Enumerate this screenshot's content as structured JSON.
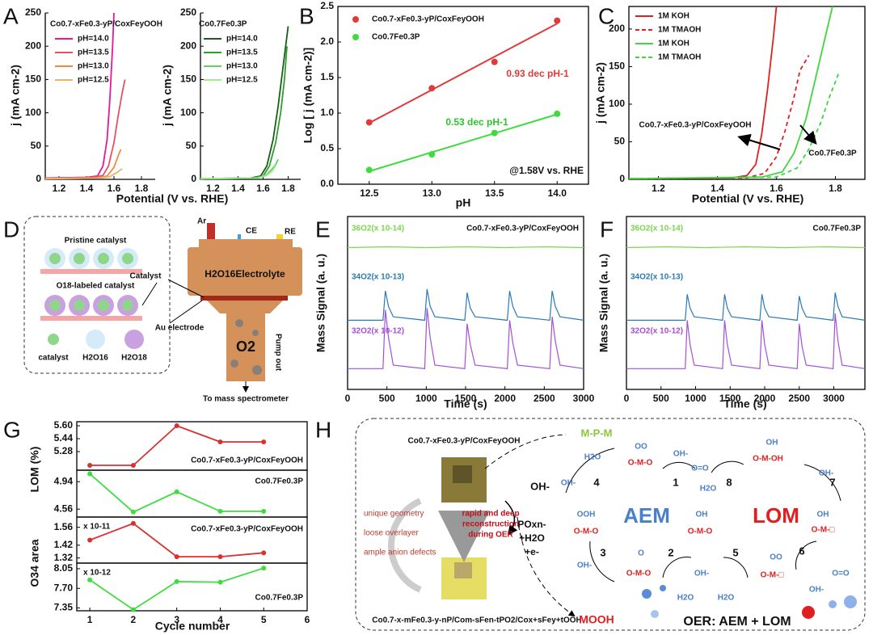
{
  "panel_labels": [
    "A",
    "B",
    "C",
    "D",
    "E",
    "F",
    "G",
    "H"
  ],
  "chart_data": [
    {
      "type": "line",
      "legend_title": "Co0.7-xFe0.3-yP/CoxFeyOOH",
      "xlabel": "Potential (V vs. RHE)",
      "ylabel": "j (mA cm-2)",
      "xlim": [
        1.1,
        1.9
      ],
      "xticks": [
        1.2,
        1.4,
        1.6,
        1.8
      ],
      "ylim": [
        0,
        250
      ],
      "yticks": [
        0,
        50,
        100,
        150,
        200,
        250
      ],
      "legend": "top-left",
      "series": [
        {
          "name": "pH=14.0",
          "color": "#e4199a",
          "x": [
            1.1,
            1.4,
            1.48,
            1.52,
            1.55,
            1.57,
            1.59,
            1.6
          ],
          "values": [
            2,
            3,
            5,
            20,
            60,
            120,
            200,
            250
          ]
        },
        {
          "name": "pH=13.5",
          "color": "#ea5064",
          "x": [
            1.1,
            1.45,
            1.52,
            1.56,
            1.6,
            1.63,
            1.66,
            1.68
          ],
          "values": [
            2,
            3,
            6,
            20,
            55,
            95,
            130,
            150
          ]
        },
        {
          "name": "pH=13.0",
          "color": "#f08a3c",
          "x": [
            1.1,
            1.48,
            1.55,
            1.6,
            1.63,
            1.65
          ],
          "values": [
            1,
            2,
            5,
            18,
            35,
            45
          ]
        },
        {
          "name": "pH=12.5",
          "color": "#e9b46a",
          "x": [
            1.1,
            1.5,
            1.57,
            1.62,
            1.66
          ],
          "values": [
            1,
            2,
            4,
            10,
            16
          ]
        }
      ]
    },
    {
      "type": "line",
      "legend_title": "Co0.7Fe0.3P",
      "ylabel": "j (mA cm-2)",
      "xlim": [
        1.1,
        1.9
      ],
      "xticks": [
        1.2,
        1.4,
        1.6,
        1.8
      ],
      "ylim": [
        0,
        250
      ],
      "yticks": [
        0,
        50,
        100,
        150,
        200,
        250
      ],
      "legend": "top-left",
      "series": [
        {
          "name": "pH=14.0",
          "color": "#1a5e1a",
          "x": [
            1.1,
            1.5,
            1.58,
            1.63,
            1.68,
            1.72,
            1.76,
            1.8
          ],
          "values": [
            1,
            2,
            5,
            20,
            60,
            110,
            170,
            230
          ]
        },
        {
          "name": "pH=13.5",
          "color": "#2e9e2e",
          "x": [
            1.1,
            1.52,
            1.6,
            1.65,
            1.7,
            1.74,
            1.77,
            1.79
          ],
          "values": [
            1,
            2,
            5,
            20,
            55,
            100,
            150,
            200
          ]
        },
        {
          "name": "pH=13.0",
          "color": "#5fd35f",
          "x": [
            1.1,
            1.55,
            1.62,
            1.66,
            1.7,
            1.72
          ],
          "values": [
            1,
            2,
            6,
            13,
            22,
            30
          ]
        },
        {
          "name": "pH=12.5",
          "color": "#a0ec90",
          "x": [
            1.1,
            1.56,
            1.63,
            1.67,
            1.7
          ],
          "values": [
            1,
            2,
            6,
            12,
            20
          ]
        }
      ]
    },
    {
      "type": "scatter",
      "fit": true,
      "xlabel": "pH",
      "ylabel": "Log [ j (mA cm-2)]",
      "xlim": [
        12.25,
        14.25
      ],
      "xticks": [
        12.5,
        {
          "value": 13,
          "label": "13.0"
        },
        13.5,
        {
          "value": 14,
          "label": "14.0"
        }
      ],
      "ylim": [
        0,
        2.5
      ],
      "yticks": [
        {
          "value": 0,
          "label": "0.0"
        },
        0.5,
        {
          "value": 1,
          "label": "1.0"
        },
        1.5,
        {
          "value": 2,
          "label": "2.0"
        },
        2.5
      ],
      "legend": "top-left",
      "annotations": [
        "0.93 dec pH-1",
        "0.53 dec pH-1",
        "@1.58V vs. RHE"
      ],
      "x": [
        12.5,
        13,
        13.5,
        14
      ],
      "series": [
        {
          "name": "Co0.7-xFe0.3-yP/CoxFeyOOH",
          "color": "#e03a3a",
          "values": [
            0.87,
            1.35,
            1.72,
            2.3
          ]
        },
        {
          "name": "Co0.7Fe0.3P",
          "color": "#3fdc3f",
          "values": [
            0.2,
            0.42,
            0.72,
            0.99
          ]
        }
      ]
    },
    {
      "type": "line",
      "xlabel": "Potential (V vs. RHE)",
      "ylabel": "j (mA cm-2)",
      "xlim": [
        1.1,
        1.9
      ],
      "xticks": [
        1.2,
        1.4,
        1.6,
        1.8
      ],
      "ylim": [
        0,
        230
      ],
      "yticks": [
        0,
        50,
        100,
        150,
        200
      ],
      "legend": "top-left",
      "annotations": [
        "Co0.7-xFe0.3-yP/CoxFeyOOH",
        "Co0.7Fe0.3P"
      ],
      "series": [
        {
          "name": "1M KOH",
          "color": "#e02020",
          "dash": false,
          "x": [
            1.1,
            1.45,
            1.5,
            1.53,
            1.55,
            1.57,
            1.59,
            1.6
          ],
          "values": [
            1,
            2,
            5,
            20,
            60,
            120,
            190,
            230
          ]
        },
        {
          "name": "1M TMAOH",
          "color": "#e02020",
          "dash": true,
          "x": [
            1.1,
            1.5,
            1.56,
            1.6,
            1.63,
            1.66,
            1.68,
            1.71
          ],
          "values": [
            1,
            2,
            8,
            30,
            65,
            110,
            145,
            165
          ]
        },
        {
          "name": "1M KOH",
          "color": "#3fd63f",
          "dash": false,
          "x": [
            1.1,
            1.55,
            1.62,
            1.66,
            1.7,
            1.73,
            1.76,
            1.79
          ],
          "values": [
            1,
            3,
            10,
            35,
            80,
            130,
            180,
            230
          ]
        },
        {
          "name": "1M TMAOH",
          "color": "#3fd63f",
          "dash": true,
          "x": [
            1.1,
            1.6,
            1.67,
            1.71,
            1.75,
            1.78,
            1.81
          ],
          "values": [
            1,
            3,
            15,
            40,
            75,
            110,
            140
          ]
        }
      ]
    },
    {
      "type": "line",
      "xlabel": "Time (s)",
      "ylabel": "Mass Signal (a. u.)",
      "annotations": [
        "Co0.7-xFe0.3-yP/CoxFeyOOH"
      ],
      "xlim": [
        0,
        3000
      ],
      "xticks": [
        0,
        500,
        1000,
        1500,
        2000,
        2500,
        3000
      ],
      "ylim": [
        0,
        10
      ],
      "series": [
        {
          "name": "36O2(x 10-14)",
          "color": "#7dd64f",
          "x": [
            0,
            500,
            1000,
            1500,
            2000,
            2500,
            3000
          ],
          "values": [
            8.2,
            8.25,
            8.2,
            8.25,
            8.2,
            8.25,
            8.2
          ]
        },
        {
          "name": "34O2(x 10-13)",
          "color": "#2a7ab8",
          "x": [
            0,
            450,
            480,
            520,
            580,
            980,
            1010,
            1050,
            1110,
            1490,
            1520,
            1560,
            1620,
            2030,
            2060,
            2100,
            2160,
            2570,
            2600,
            2640,
            2700,
            3000
          ],
          "values": [
            4.0,
            4.0,
            5.7,
            4.8,
            4.2,
            4.0,
            5.8,
            4.8,
            4.2,
            4.0,
            5.6,
            4.7,
            4.2,
            4.0,
            5.7,
            4.8,
            4.2,
            4.0,
            5.7,
            4.8,
            4.2,
            4.0
          ]
        },
        {
          "name": "32O2(x 10-12)",
          "color": "#a64fd6",
          "x": [
            0,
            450,
            480,
            520,
            580,
            980,
            1010,
            1050,
            1110,
            1490,
            1520,
            1560,
            1620,
            2030,
            2060,
            2100,
            2160,
            2570,
            2600,
            2640,
            2700,
            3000
          ],
          "values": [
            1.2,
            1.2,
            4.6,
            3.0,
            1.4,
            1.2,
            4.7,
            3.0,
            1.4,
            1.2,
            3.8,
            2.6,
            1.4,
            1.2,
            4.0,
            2.7,
            1.4,
            1.2,
            4.2,
            2.8,
            1.4,
            1.2
          ]
        }
      ]
    },
    {
      "type": "line",
      "xlabel": "Time (s)",
      "ylabel": "Mass Signal (a. u.)",
      "annotations": [
        "Co0.7Fe0.3P"
      ],
      "xlim": [
        0,
        3450
      ],
      "xticks": [
        0,
        500,
        1000,
        1500,
        2000,
        2500,
        3000
      ],
      "ylim": [
        0,
        10
      ],
      "series": [
        {
          "name": "36O2(x 10-14)",
          "color": "#7dd64f",
          "x": [
            0,
            575,
            1150,
            1725,
            2300,
            2875,
            3450
          ],
          "values": [
            8.2,
            8.25,
            8.2,
            8.25,
            8.2,
            8.25,
            8.2
          ]
        },
        {
          "name": "34O2(x 10-13)",
          "color": "#2a7ab8",
          "x": [
            0,
            850,
            880,
            920,
            980,
            1390,
            1420,
            1460,
            1520,
            1930,
            1960,
            2000,
            2060,
            2470,
            2500,
            2540,
            2600,
            2990,
            3020,
            3060,
            3120,
            3450
          ],
          "values": [
            4.0,
            4.0,
            5.5,
            4.7,
            4.2,
            4.0,
            5.5,
            4.7,
            4.2,
            4.0,
            5.5,
            4.7,
            4.2,
            4.0,
            5.4,
            4.7,
            4.2,
            4.0,
            5.6,
            4.8,
            4.2,
            4.0
          ]
        },
        {
          "name": "32O2(x 10-12)",
          "color": "#a64fd6",
          "x": [
            0,
            850,
            880,
            920,
            980,
            1390,
            1420,
            1460,
            1520,
            1930,
            1960,
            2000,
            2060,
            2470,
            2500,
            2540,
            2600,
            2990,
            3020,
            3060,
            3120,
            3450
          ],
          "values": [
            1.2,
            1.2,
            4.0,
            2.6,
            1.4,
            1.2,
            4.0,
            2.6,
            1.4,
            1.2,
            4.0,
            2.6,
            1.4,
            1.2,
            3.8,
            2.5,
            1.4,
            1.2,
            4.4,
            2.8,
            1.4,
            1.2
          ]
        }
      ]
    },
    {
      "type": "line",
      "markers": true,
      "ylabel": "LOM (%)",
      "annotations": [
        "Co0.7-xFe0.3-yP/CoxFeyOOH"
      ],
      "color": "#d93030",
      "xlim": [
        0.7,
        6
      ],
      "ylim": [
        5.05,
        5.65
      ],
      "yticks": [
        5.28,
        5.44,
        {
          "value": 5.6,
          "label": "5.60"
        }
      ],
      "x": [
        1,
        2,
        3,
        4,
        5
      ],
      "values": [
        5.11,
        5.11,
        5.6,
        5.4,
        5.4
      ]
    },
    {
      "type": "line",
      "markers": true,
      "annotations": [
        "Co0.7Fe0.3P"
      ],
      "color": "#3fdc3f",
      "xlim": [
        0.7,
        6
      ],
      "ylim": [
        4.45,
        5.1
      ],
      "yticks": [
        4.56,
        4.94
      ],
      "x": [
        1,
        2,
        3,
        4,
        5
      ],
      "values": [
        5.05,
        4.52,
        4.8,
        4.53,
        4.53
      ]
    },
    {
      "type": "line",
      "markers": true,
      "ylabel": "O34 area",
      "multiplier": "x 10-11",
      "annotations": [
        "Co0.7-xFe0.3-yP/CoxFeyOOH"
      ],
      "color": "#d93030",
      "xlim": [
        0.7,
        6
      ],
      "ylim": [
        1.28,
        1.64
      ],
      "yticks": [
        1.32,
        1.42,
        1.56
      ],
      "x": [
        1,
        2,
        3,
        4,
        5
      ],
      "values": [
        1.46,
        1.59,
        1.33,
        1.33,
        1.36
      ]
    },
    {
      "type": "line",
      "markers": true,
      "multiplier": "x 10-12",
      "annotations": [
        "Co0.7Fe0.3P"
      ],
      "color": "#3fdc3f",
      "xlabel": "Cycle number",
      "xlim": [
        0.7,
        6
      ],
      "xticks": [
        1,
        2,
        3,
        4,
        5,
        6
      ],
      "ylim": [
        7.3,
        8.15
      ],
      "yticks": [
        7.35,
        {
          "value": 7.7,
          "label": "7.70"
        },
        8.05
      ],
      "x": [
        1,
        2,
        3,
        4,
        5
      ],
      "values": [
        7.85,
        7.32,
        7.82,
        7.81,
        8.06
      ]
    }
  ],
  "diagram_d": {
    "pristine": "Pristine catalyst",
    "labeled": "O18-labeled catalyst",
    "legend": [
      "catalyst",
      "H2O16",
      "H2O18"
    ],
    "catalyst": "Catalyst",
    "au": "Au electrode",
    "ports": [
      "Ar",
      "CE",
      "RE"
    ],
    "electrolyte": "H2O16Electrolyte",
    "o2": "O2",
    "pump": "Pump out",
    "spectrometer": "To mass spectrometer"
  },
  "diagram_h": {
    "top_material": "Co0.7-xFe0.3-yP/CoxFeyOOH",
    "features": [
      "unique geometry",
      "loose overlayer",
      "ample anion defects"
    ],
    "process": [
      "rapid and deep",
      "reconstruction",
      "during OER"
    ],
    "bottom_material": "Co0.7-x-mFe0.3-y-nP/Com-sFen-tPO2/Cox+sFey+tOOH",
    "mpm": "M-P-M",
    "oh": "OH-",
    "products": [
      "POxn-",
      "+H2O",
      "+e-"
    ],
    "mooh": "MOOH",
    "aem": "AEM",
    "lom": "LOM",
    "summary": "OER: AEM + LOM",
    "steps": [
      "1",
      "2",
      "3",
      "4",
      "5",
      "6",
      "7",
      "8"
    ],
    "species": [
      "H2O",
      "OH-",
      "OO",
      "O-M-O",
      "OH-",
      "O=O",
      "H2O",
      "OH",
      "O-M-OH",
      "OH-",
      "OOH",
      "O-M-O",
      "OH",
      "O-M-O",
      "OH",
      "O-M-□",
      "OH-",
      "O",
      "O-M-O",
      "H2O",
      "OH-",
      "H2O",
      "OO",
      "O-M-□",
      "O=O",
      "OH-"
    ]
  }
}
